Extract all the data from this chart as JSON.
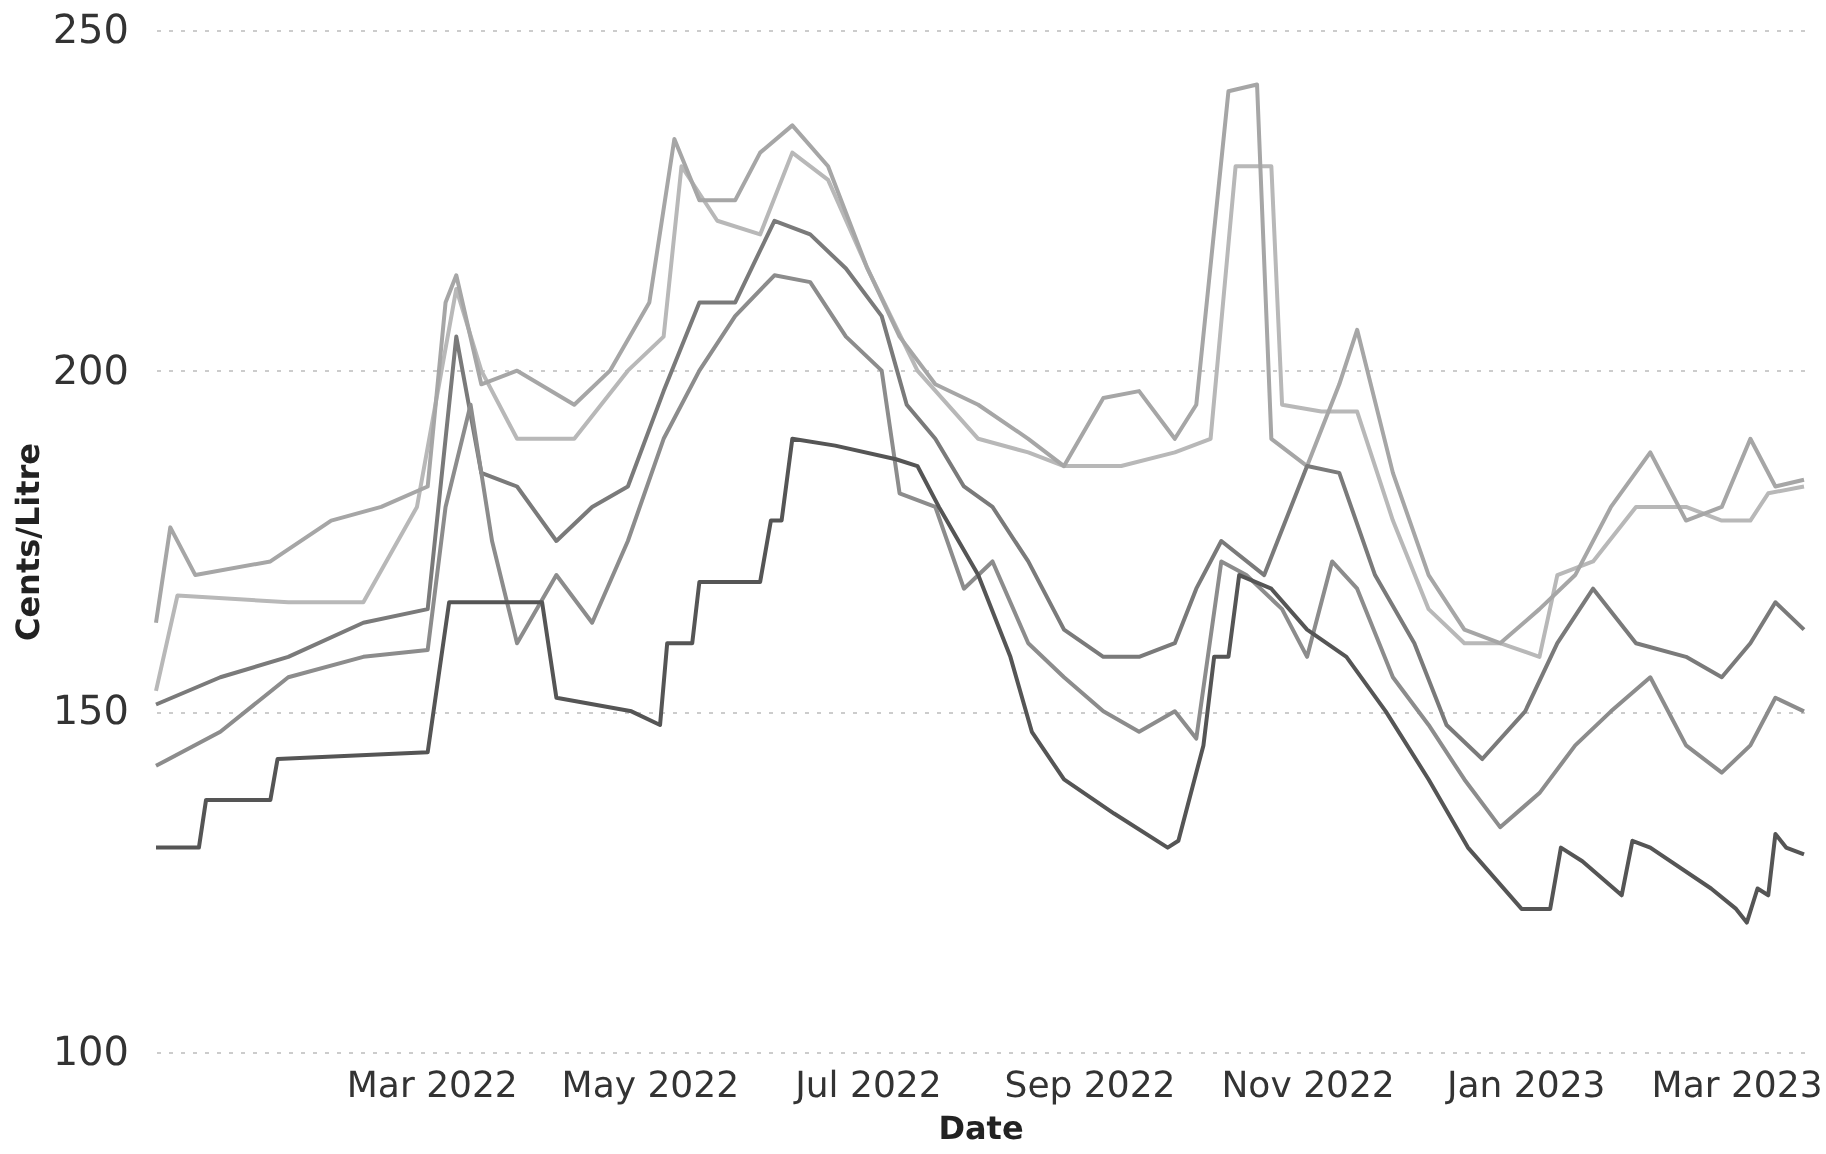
{
  "chart_data": {
    "type": "line",
    "xlabel": "Date",
    "ylabel": "Cents/Litre",
    "xlim": [
      "2021-12-14",
      "2023-03-20"
    ],
    "xticks": [
      {
        "value": "2022-03-01",
        "label": "Mar 2022"
      },
      {
        "value": "2022-05-01",
        "label": "May 2022"
      },
      {
        "value": "2022-07-01",
        "label": "Jul 2022"
      },
      {
        "value": "2022-09-01",
        "label": "Sep 2022"
      },
      {
        "value": "2022-11-01",
        "label": "Nov 2022"
      },
      {
        "value": "2023-01-01",
        "label": "Jan 2023"
      },
      {
        "value": "2023-03-01",
        "label": "Mar 2023"
      }
    ],
    "ylim": [
      100,
      250
    ],
    "yticks": [
      100,
      150,
      200,
      250
    ],
    "grid": "y",
    "legend": false,
    "line_style": "solid",
    "marker": "none",
    "series": [
      {
        "color": "#b8b8b8",
        "x": [
          "2021-12-14",
          "2021-12-20",
          "2022-01-20",
          "2022-02-10",
          "2022-02-25",
          "2022-03-08",
          "2022-03-15",
          "2022-03-25",
          "2022-04-10",
          "2022-04-25",
          "2022-05-05",
          "2022-05-10",
          "2022-05-20",
          "2022-06-01",
          "2022-06-10",
          "2022-06-20",
          "2022-07-01",
          "2022-07-15",
          "2022-08-01",
          "2022-08-15",
          "2022-08-25",
          "2022-09-10",
          "2022-09-25",
          "2022-10-05",
          "2022-10-12",
          "2022-10-22",
          "2022-10-25",
          "2022-11-05",
          "2022-11-15",
          "2022-11-25",
          "2022-12-05",
          "2022-12-15",
          "2022-12-25",
          "2023-01-05",
          "2023-01-10",
          "2023-01-20",
          "2023-02-01",
          "2023-02-15",
          "2023-02-25",
          "2023-03-05",
          "2023-03-10",
          "2023-03-20"
        ],
        "values": [
          153,
          167,
          166,
          166,
          180,
          212,
          200,
          190,
          190,
          200,
          205,
          230,
          222,
          220,
          232,
          228,
          215,
          200,
          190,
          188,
          186,
          186,
          188,
          190,
          230,
          230,
          195,
          194,
          194,
          178,
          165,
          160,
          160,
          158,
          170,
          172,
          180,
          180,
          178,
          178,
          182,
          183
        ]
      },
      {
        "color": "#a6a6a6",
        "x": [
          "2021-12-14",
          "2021-12-18",
          "2021-12-25",
          "2022-01-15",
          "2022-02-01",
          "2022-02-15",
          "2022-02-28",
          "2022-03-05",
          "2022-03-08",
          "2022-03-15",
          "2022-03-25",
          "2022-04-10",
          "2022-04-20",
          "2022-05-01",
          "2022-05-08",
          "2022-05-15",
          "2022-05-25",
          "2022-06-01",
          "2022-06-10",
          "2022-06-20",
          "2022-07-01",
          "2022-07-10",
          "2022-07-20",
          "2022-08-01",
          "2022-08-15",
          "2022-08-25",
          "2022-09-05",
          "2022-09-15",
          "2022-09-25",
          "2022-10-01",
          "2022-10-10",
          "2022-10-18",
          "2022-10-22",
          "2022-11-01",
          "2022-11-10",
          "2022-11-15",
          "2022-11-25",
          "2022-12-05",
          "2022-12-15",
          "2022-12-25",
          "2023-01-05",
          "2023-01-15",
          "2023-01-25",
          "2023-02-05",
          "2023-02-15",
          "2023-02-25",
          "2023-03-05",
          "2023-03-12",
          "2023-03-20"
        ],
        "values": [
          163,
          177,
          170,
          172,
          178,
          180,
          183,
          210,
          214,
          198,
          200,
          195,
          200,
          210,
          234,
          225,
          225,
          232,
          236,
          230,
          215,
          205,
          198,
          195,
          190,
          186,
          196,
          197,
          190,
          195,
          241,
          242,
          190,
          186,
          198,
          206,
          185,
          170,
          162,
          160,
          165,
          170,
          180,
          188,
          178,
          180,
          190,
          183,
          184
        ]
      },
      {
        "color": "#7a7a7a",
        "x": [
          "2021-12-14",
          "2022-01-01",
          "2022-01-20",
          "2022-02-10",
          "2022-02-28",
          "2022-03-05",
          "2022-03-08",
          "2022-03-15",
          "2022-03-25",
          "2022-04-05",
          "2022-04-15",
          "2022-04-25",
          "2022-05-05",
          "2022-05-15",
          "2022-05-25",
          "2022-06-05",
          "2022-06-15",
          "2022-06-25",
          "2022-07-05",
          "2022-07-12",
          "2022-07-20",
          "2022-07-28",
          "2022-08-05",
          "2022-08-15",
          "2022-08-25",
          "2022-09-05",
          "2022-09-15",
          "2022-09-25",
          "2022-10-01",
          "2022-10-08",
          "2022-10-20",
          "2022-11-01",
          "2022-11-10",
          "2022-11-20",
          "2022-12-01",
          "2022-12-10",
          "2022-12-20",
          "2023-01-01",
          "2023-01-10",
          "2023-01-20",
          "2023-02-01",
          "2023-02-15",
          "2023-02-25",
          "2023-03-05",
          "2023-03-12",
          "2023-03-20"
        ],
        "values": [
          151,
          155,
          158,
          163,
          165,
          190,
          205,
          185,
          183,
          175,
          180,
          183,
          197,
          210,
          210,
          222,
          220,
          215,
          208,
          195,
          190,
          183,
          180,
          172,
          162,
          158,
          158,
          160,
          168,
          175,
          170,
          186,
          185,
          170,
          160,
          148,
          143,
          150,
          160,
          168,
          160,
          158,
          155,
          160,
          166,
          162
        ]
      },
      {
        "color": "#8c8c8c",
        "x": [
          "2021-12-14",
          "2022-01-01",
          "2022-01-20",
          "2022-02-10",
          "2022-02-28",
          "2022-03-05",
          "2022-03-12",
          "2022-03-18",
          "2022-03-25",
          "2022-04-05",
          "2022-04-15",
          "2022-04-25",
          "2022-05-05",
          "2022-05-15",
          "2022-05-25",
          "2022-06-05",
          "2022-06-15",
          "2022-06-25",
          "2022-07-05",
          "2022-07-10",
          "2022-07-20",
          "2022-07-28",
          "2022-08-05",
          "2022-08-15",
          "2022-08-25",
          "2022-09-05",
          "2022-09-15",
          "2022-09-25",
          "2022-10-01",
          "2022-10-08",
          "2022-10-15",
          "2022-10-25",
          "2022-11-01",
          "2022-11-08",
          "2022-11-15",
          "2022-11-25",
          "2022-12-05",
          "2022-12-15",
          "2022-12-25",
          "2023-01-05",
          "2023-01-15",
          "2023-01-25",
          "2023-02-05",
          "2023-02-15",
          "2023-02-25",
          "2023-03-05",
          "2023-03-12",
          "2023-03-20"
        ],
        "values": [
          142,
          147,
          155,
          158,
          159,
          180,
          195,
          175,
          160,
          170,
          163,
          175,
          190,
          200,
          208,
          214,
          213,
          205,
          200,
          182,
          180,
          168,
          172,
          160,
          155,
          150,
          147,
          150,
          146,
          172,
          170,
          165,
          158,
          172,
          168,
          155,
          148,
          140,
          133,
          138,
          145,
          150,
          155,
          145,
          141,
          145,
          152,
          150
        ]
      },
      {
        "color": "#555555",
        "x": [
          "2021-12-14",
          "2021-12-26",
          "2021-12-28",
          "2022-01-15",
          "2022-01-17",
          "2022-02-28",
          "2022-03-03",
          "2022-03-06",
          "2022-04-01",
          "2022-04-05",
          "2022-04-26",
          "2022-05-04",
          "2022-05-06",
          "2022-05-13",
          "2022-05-15",
          "2022-06-01",
          "2022-06-04",
          "2022-06-07",
          "2022-06-10",
          "2022-06-22",
          "2022-07-09",
          "2022-07-15",
          "2022-07-21",
          "2022-08-01",
          "2022-08-10",
          "2022-08-16",
          "2022-08-25",
          "2022-09-08",
          "2022-09-23",
          "2022-09-26",
          "2022-10-03",
          "2022-10-06",
          "2022-10-10",
          "2022-10-13",
          "2022-10-22",
          "2022-11-01",
          "2022-11-12",
          "2022-11-23",
          "2022-12-05",
          "2022-12-16",
          "2022-12-31",
          "2023-01-08",
          "2023-01-11",
          "2023-01-17",
          "2023-01-28",
          "2023-01-31",
          "2023-02-05",
          "2023-02-22",
          "2023-03-01",
          "2023-03-04",
          "2023-03-07",
          "2023-03-10",
          "2023-03-12",
          "2023-03-15",
          "2023-03-20"
        ],
        "values": [
          130,
          130,
          137,
          137,
          143,
          144,
          155,
          166,
          166,
          152,
          150,
          148,
          160,
          160,
          169,
          169,
          178,
          178,
          190,
          189,
          187,
          186,
          180,
          170,
          158,
          147,
          140,
          135,
          130,
          131,
          145,
          158,
          158,
          170,
          168,
          162,
          158,
          150,
          140,
          130,
          121,
          121,
          130,
          128,
          123,
          131,
          130,
          124,
          121,
          119,
          124,
          123,
          132,
          130,
          129
        ]
      }
    ]
  }
}
